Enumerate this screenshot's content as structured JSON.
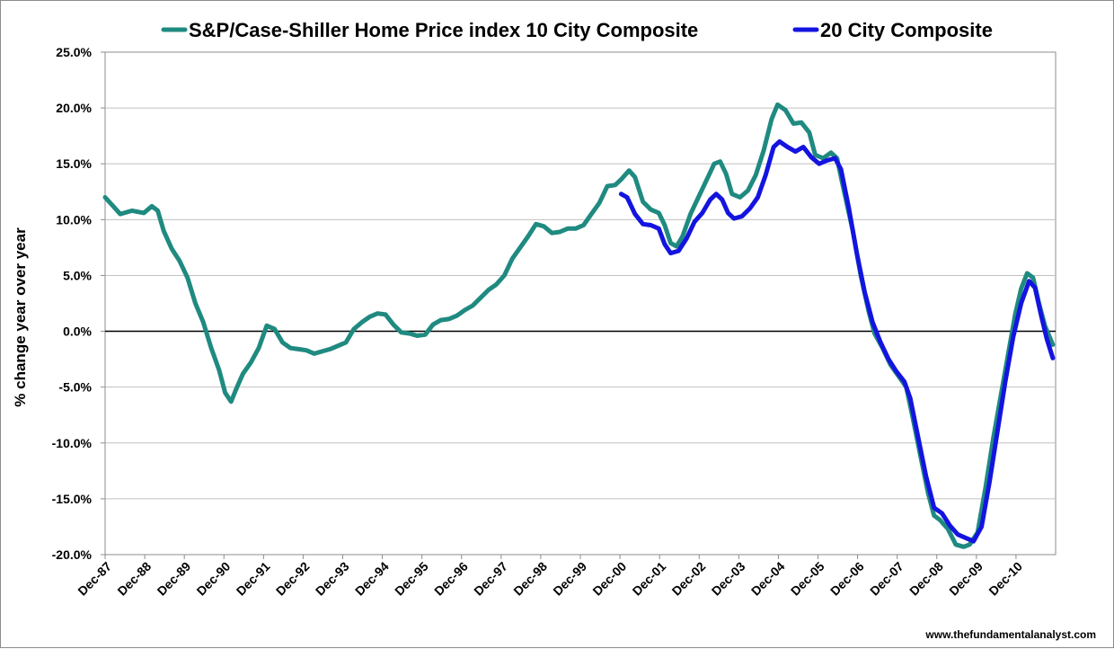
{
  "chart_data": {
    "type": "line",
    "ylabel": "% change year over year",
    "ylim": [
      -20,
      25
    ],
    "ytick_step": 5,
    "y_tick_labels": [
      "25.0%",
      "20.0%",
      "15.0%",
      "10.0%",
      "5.0%",
      "0.0%",
      "-5.0%",
      "-10.0%",
      "-15.0%",
      "-20.0%"
    ],
    "x_tick_labels": [
      "Dec-87",
      "Dec-88",
      "Dec-89",
      "Dec-90",
      "Dec-91",
      "Dec-92",
      "Dec-93",
      "Dec-94",
      "Dec-95",
      "Dec-96",
      "Dec-97",
      "Dec-98",
      "Dec-99",
      "Dec-00",
      "Dec-01",
      "Dec-02",
      "Dec-03",
      "Dec-04",
      "Dec-05",
      "Dec-06",
      "Dec-07",
      "Dec-08",
      "Dec-09",
      "Dec-10"
    ],
    "grid": "horizontal",
    "legend_position": "top",
    "series": [
      {
        "name": "S&P/Case-Shiller Home Price index 10 City Composite",
        "color": "#1f8a80",
        "points": [
          [
            1987.92,
            12.0
          ],
          [
            1988.1,
            11.3
          ],
          [
            1988.3,
            10.5
          ],
          [
            1988.6,
            10.8
          ],
          [
            1988.9,
            10.6
          ],
          [
            1989.1,
            11.2
          ],
          [
            1989.25,
            10.8
          ],
          [
            1989.4,
            9.0
          ],
          [
            1989.6,
            7.4
          ],
          [
            1989.8,
            6.3
          ],
          [
            1990.0,
            4.8
          ],
          [
            1990.2,
            2.5
          ],
          [
            1990.4,
            0.8
          ],
          [
            1990.6,
            -1.5
          ],
          [
            1990.8,
            -3.5
          ],
          [
            1990.95,
            -5.5
          ],
          [
            1991.1,
            -6.3
          ],
          [
            1991.25,
            -5.0
          ],
          [
            1991.4,
            -3.8
          ],
          [
            1991.6,
            -2.8
          ],
          [
            1991.8,
            -1.5
          ],
          [
            1992.0,
            0.5
          ],
          [
            1992.2,
            0.2
          ],
          [
            1992.4,
            -1.0
          ],
          [
            1992.6,
            -1.5
          ],
          [
            1992.8,
            -1.6
          ],
          [
            1993.0,
            -1.7
          ],
          [
            1993.2,
            -2.0
          ],
          [
            1993.4,
            -1.8
          ],
          [
            1993.6,
            -1.6
          ],
          [
            1993.8,
            -1.3
          ],
          [
            1994.0,
            -1.0
          ],
          [
            1994.2,
            0.2
          ],
          [
            1994.4,
            0.8
          ],
          [
            1994.6,
            1.3
          ],
          [
            1994.8,
            1.6
          ],
          [
            1995.0,
            1.5
          ],
          [
            1995.2,
            0.6
          ],
          [
            1995.4,
            -0.1
          ],
          [
            1995.6,
            -0.2
          ],
          [
            1995.8,
            -0.4
          ],
          [
            1996.0,
            -0.3
          ],
          [
            1996.2,
            0.6
          ],
          [
            1996.4,
            1.0
          ],
          [
            1996.6,
            1.1
          ],
          [
            1996.8,
            1.4
          ],
          [
            1997.0,
            1.9
          ],
          [
            1997.2,
            2.3
          ],
          [
            1997.4,
            3.0
          ],
          [
            1997.6,
            3.7
          ],
          [
            1997.8,
            4.2
          ],
          [
            1998.0,
            5.0
          ],
          [
            1998.2,
            6.5
          ],
          [
            1998.4,
            7.5
          ],
          [
            1998.6,
            8.5
          ],
          [
            1998.8,
            9.6
          ],
          [
            1999.0,
            9.4
          ],
          [
            1999.2,
            8.8
          ],
          [
            1999.4,
            8.9
          ],
          [
            1999.6,
            9.2
          ],
          [
            1999.8,
            9.2
          ],
          [
            2000.0,
            9.5
          ],
          [
            2000.2,
            10.5
          ],
          [
            2000.4,
            11.5
          ],
          [
            2000.6,
            13.0
          ],
          [
            2000.8,
            13.1
          ],
          [
            2000.95,
            13.6
          ],
          [
            2001.15,
            14.4
          ],
          [
            2001.3,
            13.8
          ],
          [
            2001.5,
            11.6
          ],
          [
            2001.7,
            10.9
          ],
          [
            2001.9,
            10.6
          ],
          [
            2002.05,
            9.5
          ],
          [
            2002.2,
            7.9
          ],
          [
            2002.35,
            7.6
          ],
          [
            2002.5,
            8.5
          ],
          [
            2002.7,
            10.5
          ],
          [
            2002.9,
            12.0
          ],
          [
            2003.1,
            13.5
          ],
          [
            2003.3,
            15.0
          ],
          [
            2003.45,
            15.2
          ],
          [
            2003.6,
            14.1
          ],
          [
            2003.75,
            12.3
          ],
          [
            2003.95,
            12.0
          ],
          [
            2004.15,
            12.6
          ],
          [
            2004.35,
            14.0
          ],
          [
            2004.55,
            16.2
          ],
          [
            2004.75,
            19.0
          ],
          [
            2004.9,
            20.3
          ],
          [
            2005.1,
            19.8
          ],
          [
            2005.3,
            18.6
          ],
          [
            2005.5,
            18.7
          ],
          [
            2005.7,
            17.8
          ],
          [
            2005.85,
            15.8
          ],
          [
            2006.05,
            15.5
          ],
          [
            2006.25,
            16.0
          ],
          [
            2006.4,
            15.5
          ],
          [
            2006.55,
            13.0
          ],
          [
            2006.8,
            9.0
          ],
          [
            2007.0,
            5.0
          ],
          [
            2007.2,
            1.8
          ],
          [
            2007.35,
            -0.2
          ],
          [
            2007.55,
            -1.5
          ],
          [
            2007.75,
            -3.0
          ],
          [
            2007.95,
            -4.0
          ],
          [
            2008.15,
            -5.0
          ],
          [
            2008.3,
            -7.5
          ],
          [
            2008.5,
            -11.0
          ],
          [
            2008.7,
            -14.5
          ],
          [
            2008.85,
            -16.5
          ],
          [
            2009.0,
            -16.9
          ],
          [
            2009.2,
            -17.7
          ],
          [
            2009.4,
            -19.1
          ],
          [
            2009.6,
            -19.3
          ],
          [
            2009.75,
            -19.1
          ],
          [
            2009.95,
            -18.0
          ],
          [
            2010.15,
            -14.0
          ],
          [
            2010.35,
            -9.5
          ],
          [
            2010.55,
            -5.5
          ],
          [
            2010.75,
            -1.5
          ],
          [
            2010.9,
            1.5
          ],
          [
            2011.05,
            3.8
          ],
          [
            2011.2,
            5.2
          ],
          [
            2011.35,
            4.8
          ],
          [
            2011.5,
            2.5
          ],
          [
            2011.65,
            0.5
          ],
          [
            2011.85,
            -1.2
          ]
        ]
      },
      {
        "name": "20 City Composite",
        "color": "#1414e0",
        "points": [
          [
            2000.95,
            12.3
          ],
          [
            2001.1,
            12.0
          ],
          [
            2001.3,
            10.5
          ],
          [
            2001.5,
            9.6
          ],
          [
            2001.7,
            9.5
          ],
          [
            2001.9,
            9.2
          ],
          [
            2002.05,
            7.8
          ],
          [
            2002.2,
            7.0
          ],
          [
            2002.4,
            7.2
          ],
          [
            2002.6,
            8.3
          ],
          [
            2002.8,
            9.8
          ],
          [
            2003.0,
            10.6
          ],
          [
            2003.2,
            11.8
          ],
          [
            2003.35,
            12.3
          ],
          [
            2003.5,
            11.8
          ],
          [
            2003.65,
            10.6
          ],
          [
            2003.8,
            10.1
          ],
          [
            2004.0,
            10.3
          ],
          [
            2004.2,
            11.0
          ],
          [
            2004.4,
            12.0
          ],
          [
            2004.6,
            14.0
          ],
          [
            2004.8,
            16.5
          ],
          [
            2004.95,
            17.0
          ],
          [
            2005.15,
            16.5
          ],
          [
            2005.35,
            16.1
          ],
          [
            2005.55,
            16.5
          ],
          [
            2005.75,
            15.6
          ],
          [
            2005.95,
            15.0
          ],
          [
            2006.15,
            15.3
          ],
          [
            2006.35,
            15.5
          ],
          [
            2006.5,
            14.5
          ],
          [
            2006.7,
            11.0
          ],
          [
            2006.9,
            7.0
          ],
          [
            2007.1,
            3.5
          ],
          [
            2007.3,
            0.8
          ],
          [
            2007.5,
            -1.0
          ],
          [
            2007.7,
            -2.5
          ],
          [
            2007.9,
            -3.6
          ],
          [
            2008.1,
            -4.5
          ],
          [
            2008.25,
            -6.0
          ],
          [
            2008.45,
            -9.5
          ],
          [
            2008.65,
            -13.0
          ],
          [
            2008.85,
            -15.8
          ],
          [
            2009.05,
            -16.3
          ],
          [
            2009.25,
            -17.4
          ],
          [
            2009.45,
            -18.2
          ],
          [
            2009.65,
            -18.5
          ],
          [
            2009.85,
            -18.8
          ],
          [
            2010.05,
            -17.5
          ],
          [
            2010.25,
            -13.5
          ],
          [
            2010.45,
            -9.0
          ],
          [
            2010.65,
            -4.5
          ],
          [
            2010.85,
            -0.5
          ],
          [
            2011.05,
            2.5
          ],
          [
            2011.25,
            4.5
          ],
          [
            2011.4,
            3.9
          ],
          [
            2011.55,
            1.5
          ],
          [
            2011.7,
            -0.7
          ],
          [
            2011.85,
            -2.4
          ]
        ]
      }
    ]
  },
  "credit": "www.thefundamentalanalyst.com"
}
